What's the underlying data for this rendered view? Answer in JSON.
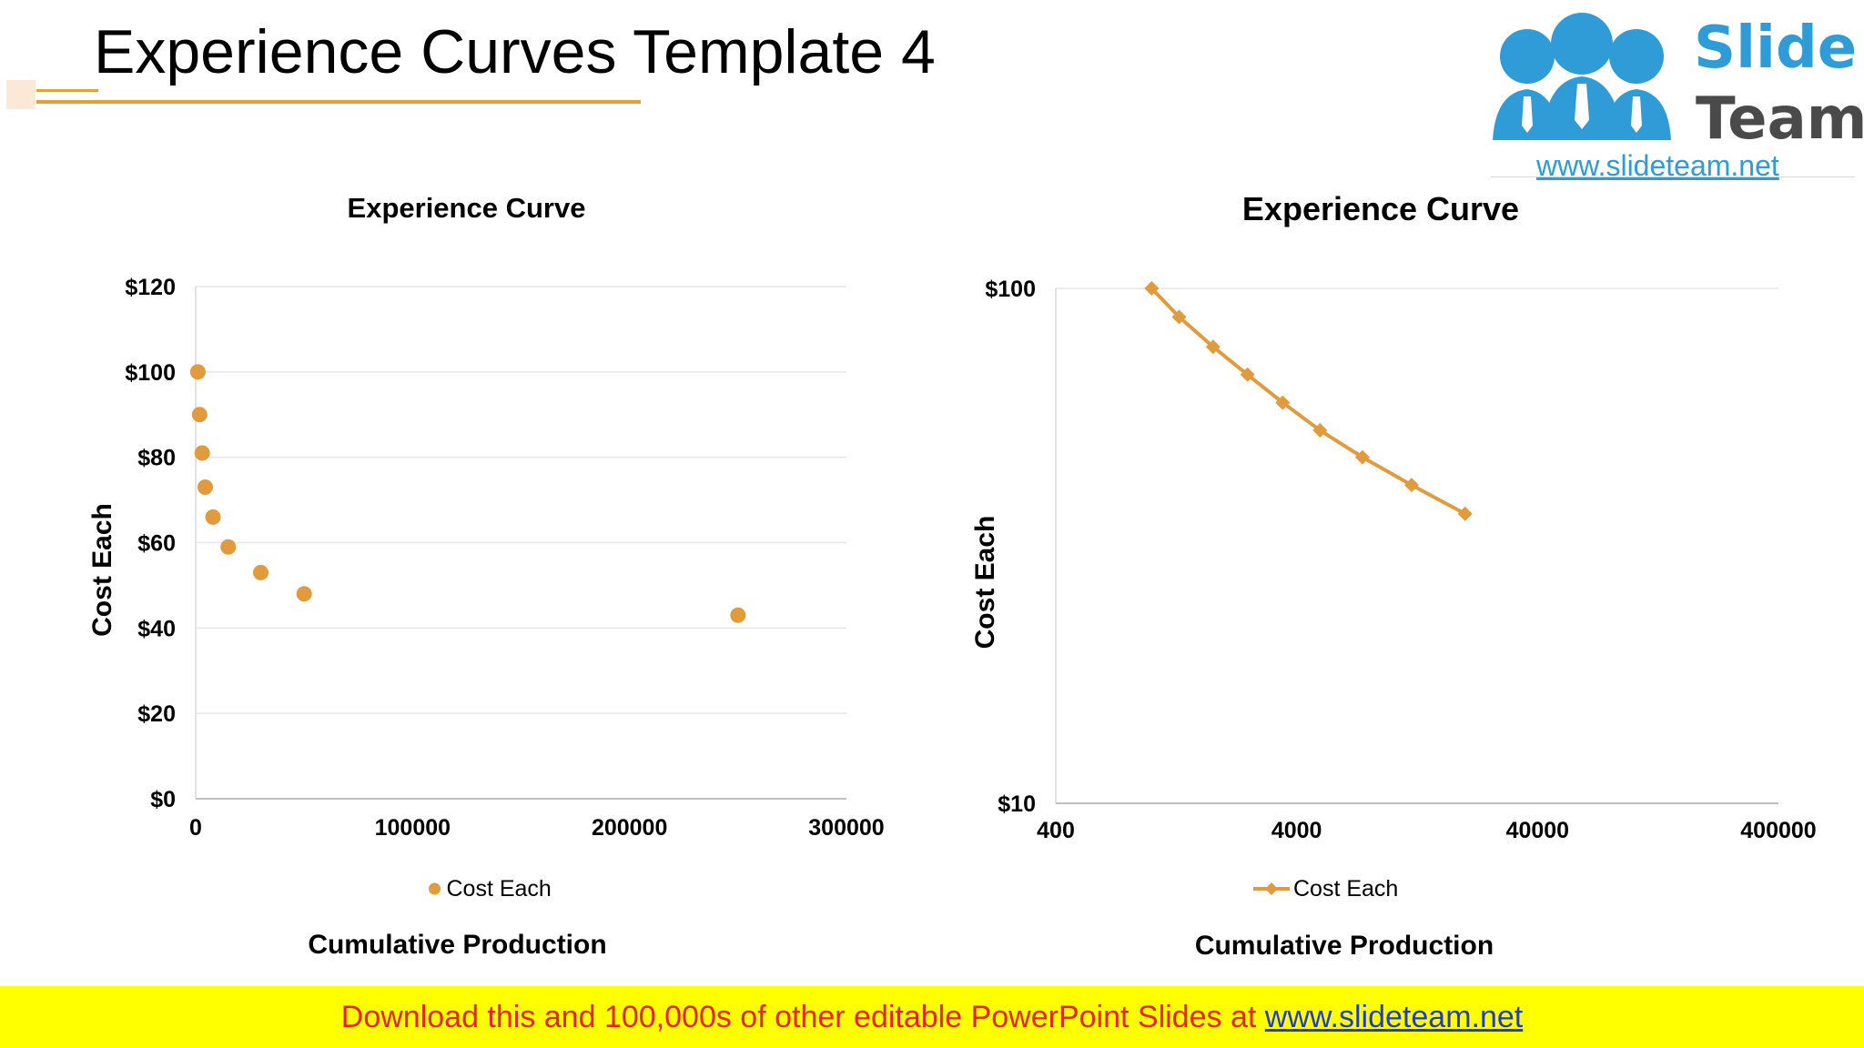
{
  "slide": {
    "title": "Experience Curves Template 4"
  },
  "logo": {
    "word_top": "Slide",
    "word_bottom": "Team",
    "url": "www.slideteam.net"
  },
  "footer": {
    "text": "Download this and 100,000s of other editable PowerPoint Slides at",
    "link": "www.slideteam.net"
  },
  "colors": {
    "series": "#E19A3C",
    "logo_blue": "#2F9BD7",
    "title_rule": "#E59E3A",
    "footer_bg": "#FFFF00",
    "footer_text": "#E8231C",
    "footer_link": "#1F3CC9"
  },
  "chart_data": [
    {
      "type": "scatter",
      "title": "Experience Curve",
      "xlabel": "Cumulative Production",
      "ylabel": "Cost Each",
      "xlim": [
        0,
        300000
      ],
      "ylim": [
        0,
        120
      ],
      "x_ticks": [
        0,
        100000,
        200000,
        300000
      ],
      "x_tick_labels": [
        "0",
        "100000",
        "200000",
        "300000"
      ],
      "y_ticks": [
        0,
        20,
        40,
        60,
        80,
        100,
        120
      ],
      "y_tick_labels": [
        "$0",
        "$20",
        "$40",
        "$60",
        "$80",
        "$100",
        "$120"
      ],
      "grid": true,
      "legend": "bottom",
      "series": [
        {
          "name": "Cost Each",
          "x": [
            1000,
            1800,
            3000,
            4400,
            8000,
            15000,
            30000,
            50000,
            250000
          ],
          "y": [
            100,
            90,
            81,
            73,
            66,
            59,
            53,
            48,
            43
          ]
        }
      ]
    },
    {
      "type": "line",
      "title": "Experience Curve",
      "xlabel": "Cumulative Production",
      "ylabel": "Cost Each",
      "x_scale": "log",
      "y_scale": "log",
      "xlim": [
        400,
        400000
      ],
      "ylim": [
        10,
        100
      ],
      "x_ticks": [
        400,
        4000,
        40000,
        400000
      ],
      "x_tick_labels": [
        "400",
        "4000",
        "40000",
        "400000"
      ],
      "y_ticks": [
        10,
        100
      ],
      "y_tick_labels": [
        "$10",
        "$100"
      ],
      "grid": true,
      "legend": "bottom",
      "series": [
        {
          "name": "Cost Each",
          "marker": "diamond",
          "x": [
            1000,
            1300,
            1800,
            2500,
            3500,
            5000,
            7500,
            12000,
            20000
          ],
          "y": [
            100,
            88,
            77,
            68,
            60,
            53,
            47,
            41.5,
            36.5
          ]
        }
      ]
    }
  ]
}
